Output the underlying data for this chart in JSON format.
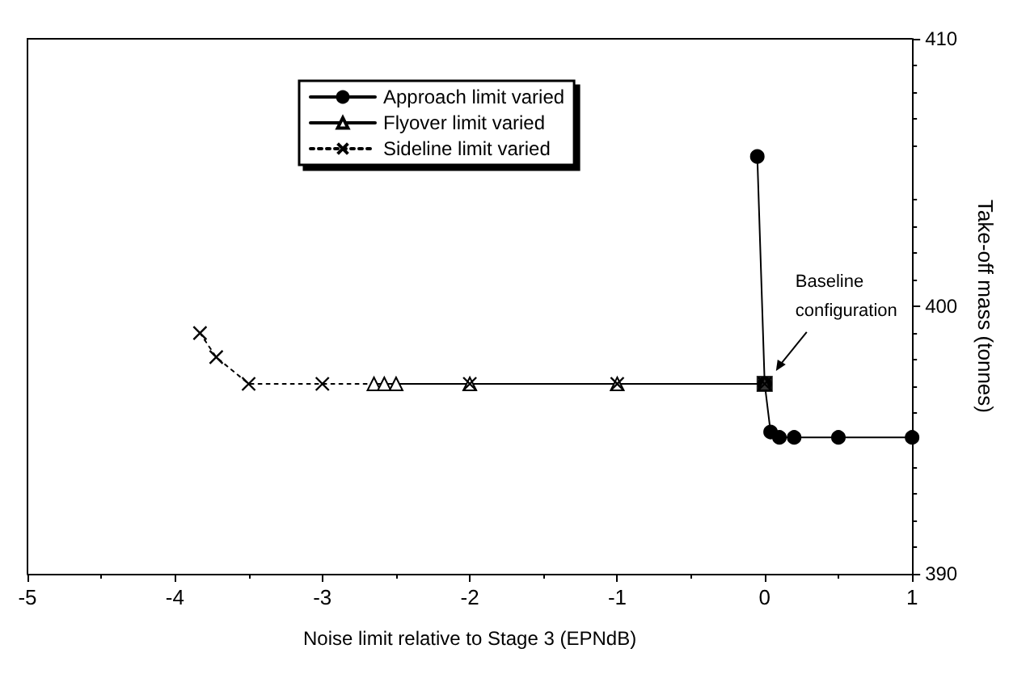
{
  "chart_data": {
    "type": "line",
    "xlabel": "Noise limit relative to Stage 3 (EPNdB)",
    "ylabel": "Take-off mass (tonnes)",
    "xlim": [
      -5,
      1
    ],
    "xticks": [
      -5,
      -4,
      -3,
      -2,
      -1,
      0,
      1
    ],
    "ylim": [
      390,
      410
    ],
    "yticks": [
      390,
      400,
      410
    ],
    "series": [
      {
        "name": "Approach limit varied",
        "color": "#000000",
        "marker": "circle",
        "line_style": "solid",
        "x": [
          -0.05,
          0,
          0.04,
          0.1,
          0.2,
          0.5,
          1
        ],
        "values": [
          405.6,
          397.1,
          395.3,
          395.1,
          395.1,
          395.1,
          395.1
        ]
      },
      {
        "name": "Flyover limit varied",
        "color": "#000000",
        "marker": "triangle",
        "line_style": "solid",
        "x": [
          -2.65,
          -2.58,
          -2.5,
          -2,
          -1,
          0
        ],
        "values": [
          397.1,
          397.1,
          397.1,
          397.1,
          397.1,
          397.1
        ]
      },
      {
        "name": "Sideline limit varied",
        "color": "#000000",
        "marker": "cross",
        "line_style": "dotted",
        "x": [
          -3.83,
          -3.72,
          -3.5,
          -3,
          -2,
          -1,
          0
        ],
        "values": [
          399.0,
          398.1,
          397.1,
          397.1,
          397.1,
          397.1,
          397.1
        ]
      },
      {
        "type": "scatter",
        "color": "#000000",
        "marker": "square",
        "x": [
          0
        ],
        "values": [
          397.1
        ]
      }
    ],
    "annotations": [
      "Baseline configuration"
    ],
    "legend": "top",
    "grid": false
  }
}
